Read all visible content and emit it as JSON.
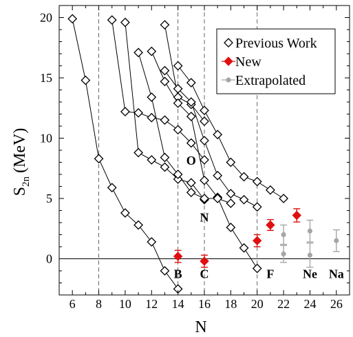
{
  "chart_data": {
    "type": "scatter",
    "xlabel": "N",
    "ylabel_main": "S",
    "ylabel_sub": "2n",
    "ylabel_unit": "(MeV)",
    "xlim": [
      5,
      27
    ],
    "ylim": [
      -3,
      21
    ],
    "x_ticks": [
      6,
      8,
      10,
      12,
      14,
      16,
      18,
      20,
      22,
      24,
      26
    ],
    "y_ticks": [
      0,
      5,
      10,
      15,
      20
    ],
    "dashed_verticals": [
      8,
      14,
      16,
      20
    ],
    "zero_line": 0,
    "legend": {
      "position": "top-right",
      "entries": [
        {
          "name": "Previous Work",
          "marker": "open-diamond",
          "color": "#000000"
        },
        {
          "name": "New",
          "marker": "filled-diamond",
          "color": "#e01010"
        },
        {
          "name": "Extrapolated",
          "marker": "filled-circle",
          "color": "#a6a6a6"
        }
      ]
    },
    "series": [
      {
        "name": "Previous Work",
        "color": "#000000",
        "marker": "open-diamond",
        "x": [
          6,
          7,
          8,
          9,
          10,
          11,
          12,
          13,
          14,
          9,
          10,
          11,
          12,
          13,
          14,
          15,
          16,
          10,
          11,
          12,
          13,
          14,
          15,
          16,
          13,
          14,
          15,
          16,
          14,
          15,
          16,
          17,
          18,
          19,
          20,
          21,
          22,
          13,
          14,
          15,
          16,
          17,
          18,
          19,
          20,
          12,
          13,
          14,
          15,
          16,
          17,
          18,
          19,
          20,
          11,
          12,
          13,
          14,
          15,
          16,
          17,
          18
        ],
        "y": [
          19.9,
          14.8,
          8.3,
          5.9,
          3.8,
          2.8,
          1.4,
          -1.0,
          -2.5,
          19.8,
          12.2,
          12.1,
          11.7,
          11.5,
          10.7,
          9.6,
          8.2,
          19.6,
          8.8,
          8.2,
          7.6,
          6.6,
          6.3,
          4.9,
          19.4,
          13.4,
          12.8,
          11.4,
          16.0,
          14.6,
          12.3,
          10.3,
          8.0,
          6.8,
          6.4,
          5.7,
          5.0,
          15.6,
          14.1,
          13.0,
          9.8,
          6.9,
          5.4,
          4.9,
          4.3,
          17.2,
          14.7,
          12.9,
          11.8,
          6.5,
          5.1,
          2.6,
          0.9,
          -0.8,
          17.1,
          13.4,
          8.4,
          7.0,
          5.5,
          5.0,
          5.0,
          4.6
        ],
        "lines": [
          {
            "x": [
              6,
              7,
              8,
              9,
              10,
              11,
              12,
              13,
              14
            ],
            "y": [
              19.9,
              14.8,
              8.3,
              5.9,
              3.8,
              2.8,
              1.4,
              -1.0,
              -2.5
            ]
          },
          {
            "x": [
              9,
              10,
              11,
              12,
              13,
              14,
              15,
              16
            ],
            "y": [
              19.8,
              12.2,
              12.1,
              11.7,
              11.5,
              10.7,
              9.6,
              8.2
            ]
          },
          {
            "x": [
              10,
              11,
              12,
              13,
              14,
              15,
              16
            ],
            "y": [
              19.6,
              8.8,
              8.2,
              7.6,
              6.6,
              6.3,
              4.9
            ]
          },
          {
            "x": [
              13,
              14,
              15,
              16
            ],
            "y": [
              19.4,
              13.4,
              12.8,
              11.4
            ]
          },
          {
            "x": [
              14,
              15,
              16,
              17,
              18,
              19,
              20,
              21,
              22
            ],
            "y": [
              16.0,
              14.6,
              12.3,
              10.3,
              8.0,
              6.8,
              6.4,
              5.7,
              5.0
            ]
          },
          {
            "x": [
              13,
              14,
              15,
              16,
              17,
              18,
              19,
              20
            ],
            "y": [
              15.6,
              14.1,
              13.0,
              9.8,
              6.9,
              5.4,
              4.9,
              4.3
            ]
          },
          {
            "x": [
              12,
              13,
              14,
              15,
              16,
              17,
              18,
              19,
              20
            ],
            "y": [
              17.2,
              14.7,
              12.9,
              11.8,
              6.5,
              5.1,
              2.6,
              0.9,
              -0.8
            ]
          },
          {
            "x": [
              11,
              12,
              13,
              14,
              15,
              16,
              17,
              18
            ],
            "y": [
              17.1,
              13.4,
              8.4,
              7.0,
              5.5,
              5.0,
              5.0,
              4.6
            ]
          }
        ]
      },
      {
        "name": "New",
        "color": "#e01010",
        "marker": "filled-diamond",
        "x": [
          14,
          16,
          20,
          21,
          23
        ],
        "y": [
          0.2,
          -0.2,
          1.5,
          2.8,
          3.6
        ],
        "err": [
          0.5,
          0.5,
          0.5,
          0.45,
          0.55
        ]
      },
      {
        "name": "Extrapolated",
        "color": "#a6a6a6",
        "marker": "filled-circle",
        "x": [
          22,
          22,
          24,
          24,
          26
        ],
        "y": [
          2.0,
          0.4,
          2.3,
          0.3,
          1.5
        ],
        "err": [
          0.8,
          0.7,
          0.9,
          1.0,
          0.9
        ]
      }
    ],
    "isotope_labels": [
      {
        "text": "B",
        "x": 14,
        "y": -1.6
      },
      {
        "text": "C",
        "x": 16,
        "y": -1.6
      },
      {
        "text": "F",
        "x": 21,
        "y": -1.6
      },
      {
        "text": "Ne",
        "x": 24,
        "y": -1.6
      },
      {
        "text": "Na",
        "x": 26,
        "y": -1.6
      },
      {
        "text": "O",
        "x": 15,
        "y": 7.8
      },
      {
        "text": "N",
        "x": 16,
        "y": 3.1
      }
    ]
  }
}
